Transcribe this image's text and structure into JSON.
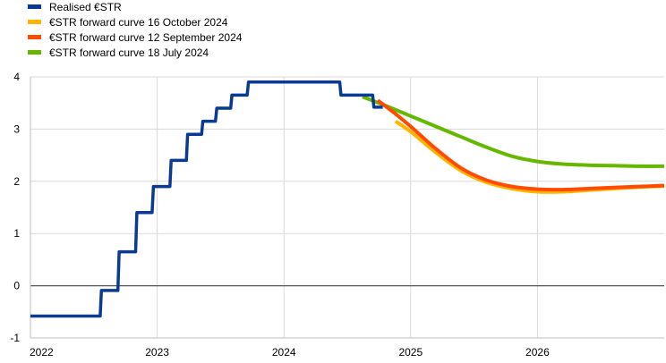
{
  "chart_data": {
    "type": "line",
    "title": "",
    "xlabel": "",
    "ylabel": "",
    "xlim": [
      2022.0,
      2027.0
    ],
    "ylim": [
      -1,
      4
    ],
    "grid": true,
    "legend_position": "top-left",
    "x_ticks": [
      {
        "value": 2022,
        "label": "2022"
      },
      {
        "value": 2023,
        "label": "2023"
      },
      {
        "value": 2024,
        "label": "2024"
      },
      {
        "value": 2025,
        "label": "2025"
      },
      {
        "value": 2026,
        "label": "2026"
      }
    ],
    "y_ticks": [
      {
        "value": 4,
        "label": "4"
      },
      {
        "value": 3,
        "label": "3"
      },
      {
        "value": 2,
        "label": "2"
      },
      {
        "value": 1,
        "label": "1"
      },
      {
        "value": 0,
        "label": "0"
      },
      {
        "value": -1,
        "label": "-1"
      }
    ],
    "series": [
      {
        "name": "Realised €STR",
        "color": "#0a3a94",
        "step": true,
        "points": [
          [
            2022.0,
            -0.58
          ],
          [
            2022.55,
            -0.58
          ],
          [
            2022.56,
            -0.09
          ],
          [
            2022.69,
            -0.09
          ],
          [
            2022.7,
            0.65
          ],
          [
            2022.83,
            0.65
          ],
          [
            2022.84,
            1.4
          ],
          [
            2022.96,
            1.4
          ],
          [
            2022.97,
            1.9
          ],
          [
            2023.1,
            1.9
          ],
          [
            2023.11,
            2.4
          ],
          [
            2023.23,
            2.4
          ],
          [
            2023.24,
            2.9
          ],
          [
            2023.35,
            2.9
          ],
          [
            2023.36,
            3.15
          ],
          [
            2023.46,
            3.15
          ],
          [
            2023.47,
            3.4
          ],
          [
            2023.58,
            3.4
          ],
          [
            2023.59,
            3.65
          ],
          [
            2023.71,
            3.65
          ],
          [
            2023.72,
            3.9
          ],
          [
            2024.44,
            3.9
          ],
          [
            2024.45,
            3.65
          ],
          [
            2024.7,
            3.65
          ],
          [
            2024.71,
            3.42
          ],
          [
            2024.78,
            3.42
          ]
        ]
      },
      {
        "name": "€STR forward  curve  16 October 2024",
        "color": "#ffb400",
        "step": false,
        "points": [
          [
            2024.88,
            3.15
          ],
          [
            2025.0,
            2.95
          ],
          [
            2025.2,
            2.55
          ],
          [
            2025.4,
            2.2
          ],
          [
            2025.6,
            1.98
          ],
          [
            2025.8,
            1.86
          ],
          [
            2026.0,
            1.8
          ],
          [
            2026.2,
            1.8
          ],
          [
            2026.4,
            1.83
          ],
          [
            2026.6,
            1.86
          ],
          [
            2026.8,
            1.89
          ],
          [
            2027.0,
            1.91
          ]
        ]
      },
      {
        "name": "€STR forward  curve  12 September 2024",
        "color": "#ff4b00",
        "step": false,
        "points": [
          [
            2024.74,
            3.55
          ],
          [
            2024.85,
            3.35
          ],
          [
            2025.0,
            3.05
          ],
          [
            2025.2,
            2.62
          ],
          [
            2025.4,
            2.25
          ],
          [
            2025.6,
            2.02
          ],
          [
            2025.8,
            1.9
          ],
          [
            2026.0,
            1.85
          ],
          [
            2026.2,
            1.84
          ],
          [
            2026.4,
            1.86
          ],
          [
            2026.6,
            1.88
          ],
          [
            2026.8,
            1.9
          ],
          [
            2027.0,
            1.92
          ]
        ]
      },
      {
        "name": "€STR forward  curve  18 July 2024",
        "color": "#65b800",
        "step": false,
        "points": [
          [
            2024.62,
            3.62
          ],
          [
            2024.8,
            3.45
          ],
          [
            2025.0,
            3.25
          ],
          [
            2025.2,
            3.05
          ],
          [
            2025.4,
            2.85
          ],
          [
            2025.6,
            2.65
          ],
          [
            2025.8,
            2.48
          ],
          [
            2026.0,
            2.38
          ],
          [
            2026.2,
            2.33
          ],
          [
            2026.4,
            2.31
          ],
          [
            2026.6,
            2.3
          ],
          [
            2026.8,
            2.29
          ],
          [
            2027.0,
            2.29
          ]
        ]
      }
    ]
  }
}
